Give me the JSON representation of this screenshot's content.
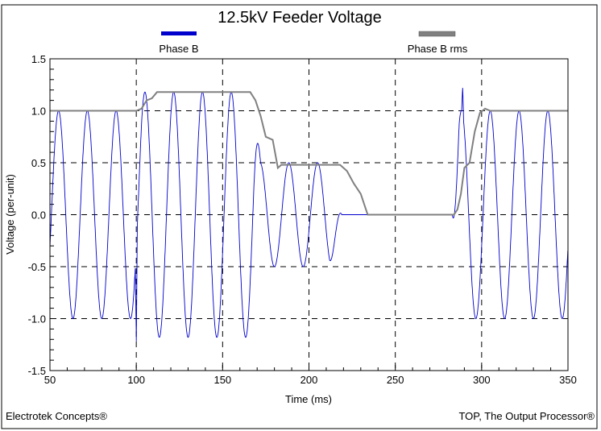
{
  "chart_data": {
    "type": "line",
    "title": "12.5kV Feeder Voltage",
    "xlabel": "Time (ms)",
    "ylabel": "Voltage (per-unit)",
    "xlim": [
      50,
      350
    ],
    "ylim": [
      -1.5,
      1.5
    ],
    "xticks": [
      50,
      100,
      150,
      200,
      250,
      300,
      350
    ],
    "xtick_labels": [
      "50",
      "100",
      "150",
      "200",
      "250",
      "300",
      "350"
    ],
    "yticks": [
      1.5,
      1.0,
      0.5,
      0.0,
      -0.5,
      -1.0,
      -1.5
    ],
    "ytick_labels": [
      "1.5",
      "1.0",
      "0.5",
      "0.0",
      "-0.5",
      "-1.0",
      "-1.5"
    ],
    "grid": true,
    "legend_position": "top",
    "series": [
      {
        "name": "Phase B",
        "color": "#0000cc",
        "frequency_hz": 60,
        "first_peak_ms": 55,
        "amplitude_segments": [
          {
            "t": 50,
            "amp": 1.0
          },
          {
            "t": 100,
            "amp": 1.0
          },
          {
            "t": 103,
            "amp": 1.18
          },
          {
            "t": 168,
            "amp": 1.18
          },
          {
            "t": 172,
            "amp": 0.5
          },
          {
            "t": 212,
            "amp": 0.5
          },
          {
            "t": 219,
            "amp": 0.0
          },
          {
            "t": 283,
            "amp": 0.0
          },
          {
            "t": 287,
            "amp": 1.0
          },
          {
            "t": 350,
            "amp": 1.0
          }
        ],
        "transient_spikes": [
          {
            "t": 100,
            "v": -1.22
          },
          {
            "t": 289,
            "v": 1.22
          }
        ]
      },
      {
        "name": "Phase B rms",
        "color": "#808080",
        "x": [
          50,
          100,
          103,
          106,
          109,
          112,
          166,
          169,
          172,
          175,
          179,
          182,
          184,
          218,
          222,
          226,
          230,
          234,
          284,
          286,
          288,
          290,
          293,
          296,
          299,
          302,
          305,
          350
        ],
        "y": [
          1.0,
          1.0,
          1.02,
          1.1,
          1.12,
          1.18,
          1.18,
          1.1,
          0.95,
          0.75,
          0.72,
          0.45,
          0.48,
          0.48,
          0.42,
          0.3,
          0.2,
          0.0,
          0.0,
          0.05,
          0.2,
          0.45,
          0.5,
          0.8,
          0.98,
          1.02,
          1.0,
          1.0
        ]
      }
    ]
  },
  "footer": {
    "left": "Electrotek Concepts®",
    "right": "TOP, The Output Processor®"
  }
}
